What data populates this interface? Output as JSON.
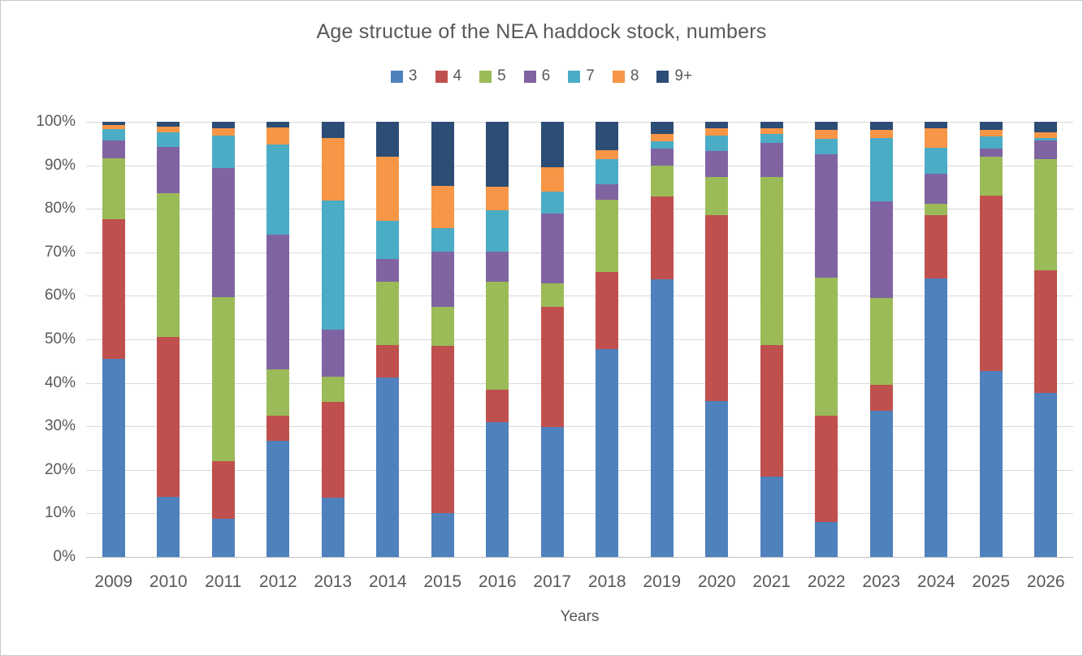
{
  "title": "Age structue of the NEA haddock stock, numbers",
  "text_color": "#595959",
  "gridline_color": "#d9d9d9",
  "chart_data": {
    "type": "bar",
    "subtype": "stacked-100-percent",
    "title": "Age structue of the NEA haddock stock, numbers",
    "xlabel": "Years",
    "ylabel": "",
    "ylim": [
      0,
      100
    ],
    "y_tick_labels": [
      "100%",
      "90%",
      "80%",
      "70%",
      "60%",
      "50%",
      "40%",
      "30%",
      "20%",
      "10%",
      "0%"
    ],
    "grid": true,
    "legend_position": "top",
    "categories": [
      "2009",
      "2010",
      "2011",
      "2012",
      "2013",
      "2014",
      "2015",
      "2016",
      "2017",
      "2018",
      "2019",
      "2020",
      "2021",
      "2022",
      "2023",
      "2024",
      "2025",
      "2026"
    ],
    "unit": "percent of stock numbers",
    "series": [
      {
        "name": "3",
        "color": "#4f81bd",
        "values": [
          45.6,
          13.8,
          8.7,
          26.6,
          13.6,
          41.3,
          10.0,
          31.0,
          29.9,
          47.8,
          63.8,
          35.8,
          18.4,
          8.0,
          33.6,
          64.0,
          42.8,
          37.7
        ]
      },
      {
        "name": "4",
        "color": "#c0504d",
        "values": [
          32.0,
          36.8,
          13.3,
          5.8,
          22.0,
          7.4,
          38.5,
          7.5,
          27.5,
          17.7,
          19.0,
          42.8,
          30.3,
          24.5,
          5.9,
          14.6,
          40.2,
          28.2
        ]
      },
      {
        "name": "5",
        "color": "#9bbb59",
        "values": [
          14.0,
          33.0,
          37.8,
          10.7,
          5.9,
          14.6,
          9.0,
          24.8,
          5.5,
          16.6,
          7.2,
          8.8,
          38.7,
          31.7,
          20.1,
          2.5,
          8.9,
          25.5
        ]
      },
      {
        "name": "6",
        "color": "#8064a2",
        "values": [
          4.1,
          10.6,
          29.5,
          30.9,
          10.7,
          5.1,
          12.6,
          6.8,
          16.1,
          3.5,
          3.9,
          5.8,
          7.7,
          28.3,
          22.2,
          6.9,
          1.9,
          4.3
        ]
      },
      {
        "name": "7",
        "color": "#4bacc6",
        "values": [
          2.6,
          3.4,
          7.6,
          20.7,
          29.7,
          8.9,
          5.5,
          9.6,
          4.9,
          5.9,
          1.7,
          3.7,
          2.2,
          3.5,
          14.4,
          6.0,
          2.8,
          0.6
        ]
      },
      {
        "name": "8",
        "color": "#f79646",
        "values": [
          0.9,
          1.2,
          1.7,
          4.1,
          14.4,
          14.7,
          9.6,
          5.3,
          5.7,
          2.0,
          1.7,
          1.6,
          1.3,
          2.1,
          1.9,
          4.5,
          1.5,
          1.2
        ]
      },
      {
        "name": "9+",
        "color": "#2c4d75",
        "values": [
          0.8,
          1.2,
          1.4,
          1.2,
          3.7,
          8.0,
          14.8,
          15.0,
          10.4,
          6.5,
          2.7,
          1.5,
          1.4,
          1.9,
          1.9,
          1.5,
          1.9,
          2.5
        ]
      }
    ]
  }
}
